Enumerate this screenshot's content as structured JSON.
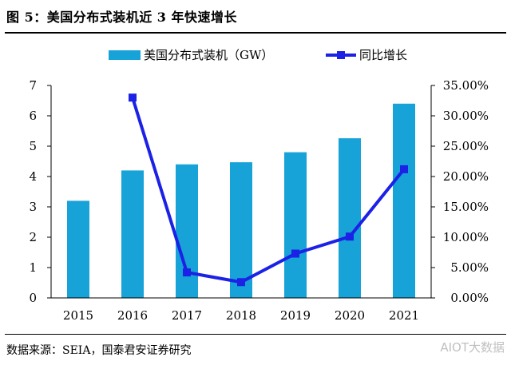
{
  "figure": {
    "title": "图 5：美国分布式装机近 3 年快速增长",
    "source": "数据来源：SEIA，国泰君安证券研究",
    "watermark": "AIOT大数据"
  },
  "colors": {
    "bar": "#17a2d8",
    "line": "#1c21e6",
    "axis": "#000000"
  },
  "chart_data": {
    "type": "bar",
    "categories": [
      "2015",
      "2016",
      "2017",
      "2018",
      "2019",
      "2020",
      "2021"
    ],
    "series": [
      {
        "name": "美国分布式装机（GW）",
        "type": "bar",
        "axis": "left",
        "values": [
          3.2,
          4.2,
          4.4,
          4.47,
          4.8,
          5.26,
          6.4
        ]
      },
      {
        "name": "同比增长",
        "type": "line",
        "axis": "right",
        "values": [
          null,
          33.0,
          4.2,
          2.6,
          7.3,
          10.1,
          21.2
        ]
      }
    ],
    "y_left": {
      "min": 0,
      "max": 7,
      "ticks": [
        "0",
        "1",
        "2",
        "3",
        "4",
        "5",
        "6",
        "7"
      ]
    },
    "y_right": {
      "min": 0,
      "max": 35,
      "ticks": [
        "0.00%",
        "5.00%",
        "10.00%",
        "15.00%",
        "20.00%",
        "25.00%",
        "30.00%",
        "35.00%"
      ]
    },
    "legend": [
      {
        "label": "美国分布式装机（GW）",
        "kind": "bar"
      },
      {
        "label": "同比增长",
        "kind": "line"
      }
    ],
    "legend_position": "top-center"
  }
}
